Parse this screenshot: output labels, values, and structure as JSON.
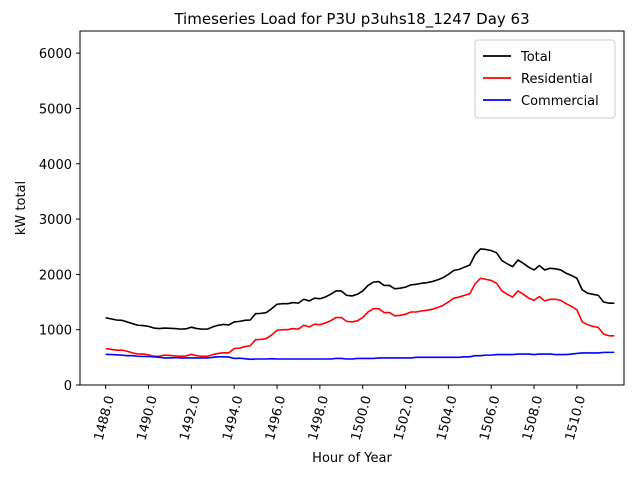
{
  "chart_data": {
    "type": "line",
    "title": "Timeseries Load for P3U p3uhs18_1247  Day 63",
    "xlabel": "Hour of Year",
    "ylabel": "kW total",
    "xlim": [
      1486.8,
      1512.2
    ],
    "ylim": [
      0,
      6400
    ],
    "x_ticks": [
      1488,
      1490,
      1492,
      1494,
      1496,
      1498,
      1500,
      1502,
      1504,
      1506,
      1508,
      1510
    ],
    "x_tick_labels": [
      "1488.0",
      "1490.0",
      "1492.0",
      "1494.0",
      "1496.0",
      "1498.0",
      "1500.0",
      "1502.0",
      "1504.0",
      "1506.0",
      "1508.0",
      "1510.0"
    ],
    "y_ticks": [
      0,
      1000,
      2000,
      3000,
      4000,
      5000,
      6000
    ],
    "y_tick_labels": [
      "0",
      "1000",
      "2000",
      "3000",
      "4000",
      "5000",
      "6000"
    ],
    "legend_position": "top-right",
    "x": [
      1488.0,
      1488.25,
      1488.5,
      1488.75,
      1489.0,
      1489.25,
      1489.5,
      1489.75,
      1490.0,
      1490.25,
      1490.5,
      1490.75,
      1491.0,
      1491.25,
      1491.5,
      1491.75,
      1492.0,
      1492.25,
      1492.5,
      1492.75,
      1493.0,
      1493.25,
      1493.5,
      1493.75,
      1494.0,
      1494.25,
      1494.5,
      1494.75,
      1495.0,
      1495.25,
      1495.5,
      1495.75,
      1496.0,
      1496.25,
      1496.5,
      1496.75,
      1497.0,
      1497.25,
      1497.5,
      1497.75,
      1498.0,
      1498.25,
      1498.5,
      1498.75,
      1499.0,
      1499.25,
      1499.5,
      1499.75,
      1500.0,
      1500.25,
      1500.5,
      1500.75,
      1501.0,
      1501.25,
      1501.5,
      1501.75,
      1502.0,
      1502.25,
      1502.5,
      1502.75,
      1503.0,
      1503.25,
      1503.5,
      1503.75,
      1504.0,
      1504.25,
      1504.5,
      1504.75,
      1505.0,
      1505.25,
      1505.5,
      1505.75,
      1506.0,
      1506.25,
      1506.5,
      1506.75,
      1507.0,
      1507.25,
      1507.5,
      1507.75,
      1508.0,
      1508.25,
      1508.5,
      1508.75,
      1509.0,
      1509.25,
      1509.5,
      1509.75,
      1510.0,
      1510.25,
      1510.5,
      1510.75,
      1511.0,
      1511.25,
      1511.5,
      1511.75
    ],
    "series": [
      {
        "name": "Total",
        "color": "#000000",
        "values": [
          1215,
          1195,
          1175,
          1170,
          1140,
          1110,
          1080,
          1075,
          1060,
          1030,
          1020,
          1030,
          1025,
          1020,
          1010,
          1015,
          1045,
          1020,
          1010,
          1010,
          1050,
          1080,
          1095,
          1085,
          1140,
          1150,
          1170,
          1175,
          1290,
          1295,
          1310,
          1380,
          1460,
          1470,
          1470,
          1490,
          1480,
          1550,
          1520,
          1570,
          1560,
          1590,
          1640,
          1700,
          1700,
          1620,
          1610,
          1640,
          1700,
          1800,
          1860,
          1870,
          1800,
          1800,
          1740,
          1750,
          1770,
          1810,
          1820,
          1840,
          1850,
          1870,
          1900,
          1940,
          2000,
          2070,
          2090,
          2130,
          2170,
          2360,
          2460,
          2450,
          2430,
          2390,
          2250,
          2190,
          2140,
          2260,
          2200,
          2130,
          2080,
          2160,
          2080,
          2110,
          2100,
          2080,
          2020,
          1980,
          1930,
          1720,
          1660,
          1640,
          1620,
          1500,
          1480,
          1480
        ]
      },
      {
        "name": "Residential",
        "color": "#ff0000",
        "values": [
          660,
          645,
          630,
          630,
          610,
          580,
          560,
          560,
          545,
          520,
          520,
          540,
          535,
          525,
          520,
          525,
          555,
          530,
          520,
          520,
          550,
          570,
          585,
          580,
          660,
          665,
          695,
          710,
          820,
          825,
          840,
          905,
          990,
          1000,
          1000,
          1020,
          1010,
          1080,
          1050,
          1100,
          1090,
          1120,
          1160,
          1220,
          1220,
          1150,
          1140,
          1160,
          1220,
          1320,
          1380,
          1380,
          1310,
          1310,
          1250,
          1260,
          1280,
          1320,
          1320,
          1340,
          1350,
          1370,
          1400,
          1440,
          1500,
          1570,
          1590,
          1620,
          1650,
          1830,
          1930,
          1910,
          1890,
          1840,
          1700,
          1640,
          1590,
          1700,
          1640,
          1570,
          1530,
          1600,
          1520,
          1550,
          1550,
          1530,
          1470,
          1420,
          1360,
          1140,
          1090,
          1060,
          1040,
          920,
          890,
          890
        ]
      },
      {
        "name": "Commercial",
        "color": "#0000ff",
        "values": [
          555,
          550,
          545,
          540,
          530,
          530,
          520,
          515,
          515,
          510,
          500,
          490,
          490,
          495,
          490,
          490,
          490,
          490,
          490,
          490,
          500,
          510,
          510,
          505,
          480,
          485,
          475,
          465,
          470,
          470,
          470,
          475,
          470,
          470,
          470,
          470,
          470,
          470,
          470,
          470,
          470,
          470,
          470,
          480,
          480,
          470,
          470,
          480,
          480,
          480,
          480,
          490,
          490,
          490,
          490,
          490,
          490,
          490,
          500,
          500,
          500,
          500,
          500,
          500,
          500,
          500,
          500,
          510,
          510,
          530,
          530,
          540,
          540,
          550,
          550,
          550,
          550,
          560,
          560,
          560,
          550,
          560,
          560,
          560,
          550,
          550,
          550,
          560,
          570,
          580,
          580,
          580,
          580,
          590,
          590,
          590
        ]
      }
    ]
  }
}
